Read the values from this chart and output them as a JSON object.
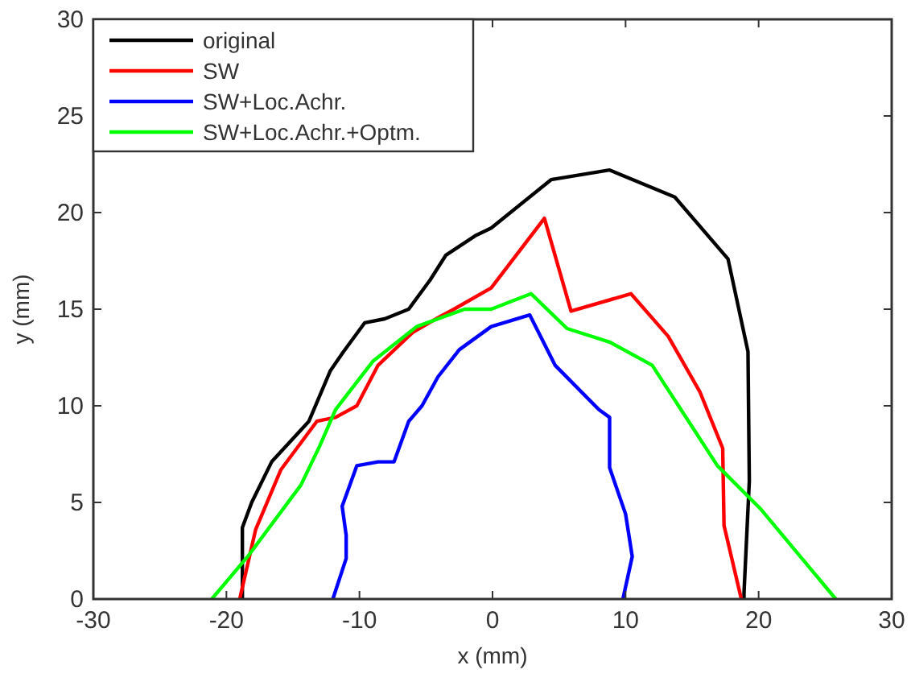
{
  "chart_data": {
    "type": "line",
    "xlabel": "x (mm)",
    "ylabel": "y (mm)",
    "xlim": [
      -30,
      30
    ],
    "ylim": [
      0,
      30
    ],
    "xticks": [
      -30,
      -20,
      -10,
      0,
      10,
      20,
      30
    ],
    "yticks": [
      0,
      5,
      10,
      15,
      20,
      25,
      30
    ],
    "grid": false,
    "legend": "top left",
    "marker": "none",
    "line_style": "solid",
    "series": [
      {
        "name": "original",
        "color": "#000000",
        "x": [
          -18.8,
          -18.8,
          -18.8,
          -18.1,
          -16.6,
          -13.8,
          -12.2,
          -11.2,
          -9.6,
          -8.1,
          -6.3,
          -4.7,
          -3.5,
          -1.3,
          -0.1,
          4.4,
          8.8,
          13.7,
          17.7,
          19.2,
          19.3,
          18.9,
          18.9
        ],
        "values": [
          0,
          2.1,
          3.7,
          5,
          7.1,
          9.2,
          11.8,
          12.8,
          14.3,
          14.5,
          15,
          16.5,
          17.8,
          18.8,
          19.2,
          21.7,
          22.2,
          20.8,
          17.6,
          12.8,
          6.1,
          0.3,
          0
        ]
      },
      {
        "name": "SW",
        "color": "#ff0000",
        "x": [
          -19,
          -17.8,
          -15.9,
          -13.2,
          -11.8,
          -10.2,
          -8.6,
          -6,
          -4,
          -2.9,
          -0.1,
          3.9,
          5.9,
          10.4,
          13.2,
          15.6,
          17.3,
          17.4,
          18.7
        ],
        "values": [
          0,
          3.6,
          6.7,
          9.2,
          9.4,
          10,
          12.1,
          13.8,
          14.6,
          15,
          16.1,
          19.7,
          14.9,
          15.8,
          13.6,
          10.7,
          7.8,
          3.8,
          0
        ]
      },
      {
        "name": "SW+Loc.Achr.",
        "color": "#0000ff",
        "x": [
          -12,
          -11,
          -11,
          -11.3,
          -10.2,
          -8.6,
          -7.4,
          -6.3,
          -5.3,
          -4.1,
          -2.5,
          -0.1,
          2.8,
          4.7,
          8,
          8.8,
          8.8,
          10,
          10.5,
          9.8
        ],
        "values": [
          0,
          2.1,
          3.3,
          4.8,
          6.9,
          7.1,
          7.1,
          9.2,
          10,
          11.5,
          12.9,
          14.1,
          14.7,
          12.1,
          9.8,
          9.4,
          6.8,
          4.4,
          2.2,
          0
        ]
      },
      {
        "name": "SW+Loc.Achr.+Optm.",
        "color": "#00ff00",
        "x": [
          -21.1,
          -18.4,
          -14.4,
          -13,
          -11.8,
          -9,
          -5.7,
          -2.1,
          -0.1,
          2.9,
          5.6,
          8.8,
          12,
          16.9,
          20.1,
          25.8
        ],
        "values": [
          0,
          2.2,
          5.9,
          7.9,
          9.8,
          12.3,
          14.1,
          15,
          15,
          15.8,
          14,
          13.3,
          12.1,
          6.9,
          4.7,
          0
        ]
      }
    ]
  }
}
